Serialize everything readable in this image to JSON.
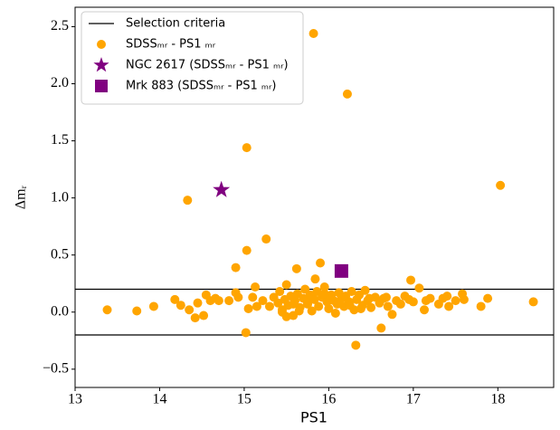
{
  "chart_data": {
    "type": "scatter",
    "x_label": "PS1",
    "y_label": "Δmᵣ",
    "xlim": [
      13,
      18.66
    ],
    "ylim": [
      -0.66,
      2.67
    ],
    "xticks": [
      13,
      14,
      15,
      16,
      17,
      18
    ],
    "yticks": [
      {
        "value": -0.5,
        "label": "−0.5"
      },
      {
        "value": 0,
        "label": "0.0"
      },
      0.5,
      {
        "value": 1,
        "label": "1.0"
      },
      1.5,
      {
        "value": 2,
        "label": "2.0"
      },
      2.5
    ],
    "grid": false,
    "legend": "upper left",
    "hlines": {
      "name": "Selection criteria",
      "color": "#000000",
      "values": [
        0.2,
        -0.2
      ]
    },
    "series": [
      {
        "name": "SDSSₘᵣ - PS1 ₘᵣ",
        "color": "#ffa500",
        "marker": "circle",
        "x": [
          15.82,
          16.22,
          15.03,
          18.03,
          14.33,
          15.03,
          15.26,
          14.9,
          15.62,
          15.9,
          15.84,
          16.97,
          17.07,
          15.02,
          16.32,
          16.62,
          13.38,
          13.73,
          13.93,
          14.18,
          14.25,
          14.35,
          14.42,
          14.45,
          14.52,
          14.55,
          14.6,
          14.66,
          14.7,
          14.82,
          14.9,
          14.93,
          15.05,
          15.1,
          15.13,
          15.15,
          15.22,
          15.3,
          15.35,
          15.4,
          15.42,
          15.45,
          15.48,
          15.5,
          15.52,
          15.55,
          15.58,
          15.6,
          15.63,
          15.66,
          15.7,
          15.72,
          15.75,
          15.78,
          15.8,
          15.83,
          15.86,
          15.88,
          15.92,
          15.95,
          15.98,
          16.0,
          16.03,
          16.06,
          16.1,
          16.12,
          16.15,
          16.18,
          16.2,
          16.24,
          16.27,
          16.3,
          16.33,
          16.36,
          16.4,
          16.43,
          16.46,
          16.5,
          16.55,
          16.6,
          16.65,
          16.7,
          16.75,
          16.8,
          16.85,
          16.9,
          16.95,
          17.0,
          17.13,
          17.15,
          17.2,
          17.3,
          17.35,
          17.4,
          17.42,
          17.5,
          17.58,
          17.6,
          17.8,
          17.88,
          18.42,
          15.5,
          15.65,
          15.75,
          15.95,
          16.08,
          16.25,
          16.38,
          16.48,
          15.45,
          15.58,
          16.68
        ],
        "values": [
          2.44,
          1.91,
          1.44,
          1.11,
          0.98,
          0.54,
          0.64,
          0.39,
          0.38,
          0.43,
          0.29,
          0.28,
          0.21,
          -0.18,
          -0.29,
          -0.14,
          0.02,
          0.01,
          0.05,
          0.11,
          0.06,
          0.02,
          -0.05,
          0.08,
          -0.03,
          0.15,
          0.1,
          0.12,
          0.1,
          0.1,
          0.17,
          0.13,
          0.03,
          0.13,
          0.22,
          0.05,
          0.1,
          0.05,
          0.13,
          0.08,
          0.18,
          0.02,
          0.11,
          0.24,
          0.06,
          0.14,
          -0.03,
          0.1,
          0.16,
          0.04,
          0.12,
          0.2,
          0.07,
          0.15,
          0.01,
          0.11,
          0.18,
          0.05,
          0.13,
          0.22,
          0.09,
          0.03,
          0.15,
          0.1,
          0.07,
          0.17,
          0.12,
          0.05,
          0.14,
          0.09,
          0.18,
          0.02,
          0.11,
          0.15,
          0.06,
          0.19,
          0.1,
          0.04,
          0.13,
          0.08,
          0.12,
          0.05,
          -0.02,
          0.1,
          0.07,
          0.14,
          0.11,
          0.09,
          0.02,
          0.1,
          0.12,
          0.07,
          0.12,
          0.14,
          0.05,
          0.1,
          0.16,
          0.11,
          0.05,
          0.12,
          0.09,
          -0.04,
          0.01,
          0.08,
          0.16,
          -0.01,
          0.06,
          0.03,
          0.12,
          0.0,
          0.07,
          0.13
        ]
      },
      {
        "name": "NGC 2617 (SDSSₘᵣ - PS1 ₘᵣ)",
        "color": "#800080",
        "marker": "star",
        "x": [
          14.73
        ],
        "values": [
          1.07
        ]
      },
      {
        "name": "Mrk 883 (SDSSₘᵣ - PS1 ₘᵣ)",
        "color": "#800080",
        "marker": "square",
        "x": [
          16.15
        ],
        "values": [
          0.36
        ]
      }
    ]
  }
}
